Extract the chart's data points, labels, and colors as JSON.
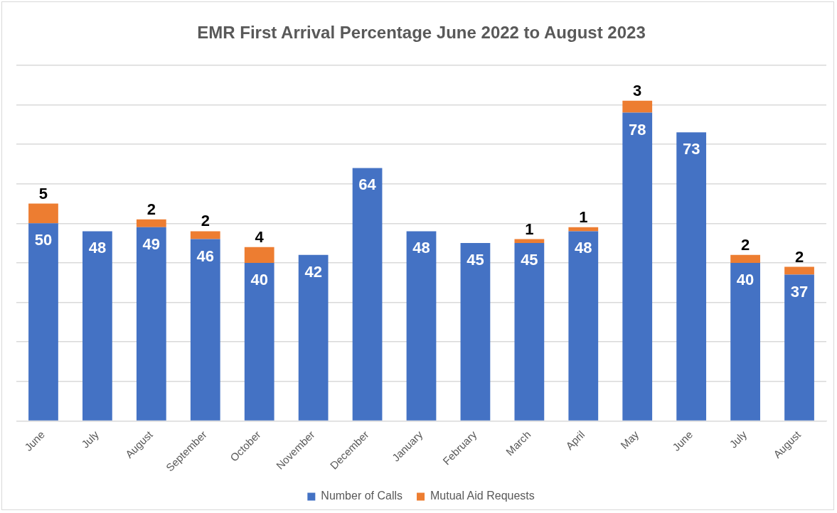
{
  "chart_data": {
    "type": "bar",
    "title": "EMR First Arrival Percentage June 2022 to August 2023",
    "categories": [
      "June",
      "July",
      "August",
      "September",
      "October",
      "November",
      "December",
      "January",
      "February",
      "March",
      "April",
      "May",
      "June",
      "July",
      "August"
    ],
    "series": [
      {
        "name": "Number of Calls",
        "color": "#4472c4",
        "values": [
          50,
          48,
          49,
          46,
          40,
          42,
          64,
          48,
          45,
          45,
          48,
          78,
          73,
          40,
          37
        ]
      },
      {
        "name": "Mutual Aid Requests",
        "color": "#ed7d31",
        "values": [
          5,
          null,
          2,
          2,
          4,
          null,
          null,
          null,
          null,
          1,
          1,
          3,
          null,
          2,
          2
        ]
      }
    ],
    "stacked": true,
    "ylim": [
      0,
      90
    ],
    "yticks": [
      {
        "value": 0,
        "label": null
      },
      {
        "value": 10,
        "label": null
      },
      {
        "value": 20,
        "label": null
      },
      {
        "value": 30,
        "label": null
      },
      {
        "value": 40,
        "label": null
      },
      {
        "value": 50,
        "label": null
      },
      {
        "value": 60,
        "label": null
      },
      {
        "value": 70,
        "label": null
      },
      {
        "value": 80,
        "label": null
      },
      {
        "value": 90,
        "label": null
      }
    ],
    "tick_labels": "x",
    "grid": "y",
    "legend": "bottom",
    "data_labels": true
  }
}
